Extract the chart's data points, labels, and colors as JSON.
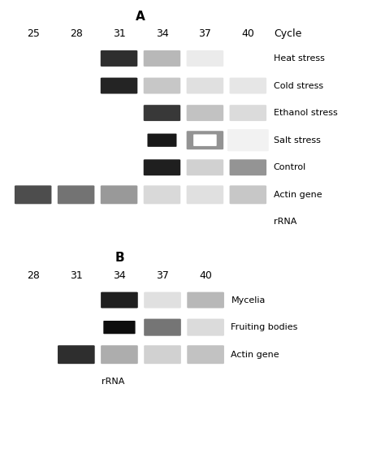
{
  "fig_bg": "#ffffff",
  "panel_A": {
    "title": "A",
    "cycles": [
      "25",
      "28",
      "31",
      "34",
      "37",
      "40"
    ],
    "cycle_label": "Cycle",
    "rows": [
      {
        "label": "Heat stress",
        "bands": [
          0.0,
          0.0,
          0.18,
          0.72,
          0.92,
          1.0
        ],
        "type": "normal"
      },
      {
        "label": "Cold stress",
        "bands": [
          0.0,
          0.0,
          0.14,
          0.78,
          0.88,
          0.9
        ],
        "type": "normal"
      },
      {
        "label": "Ethanol stress",
        "bands": [
          0.0,
          0.0,
          0.0,
          0.22,
          0.76,
          0.86
        ],
        "type": "normal"
      },
      {
        "label": "Salt stress",
        "bands": [
          0.0,
          0.0,
          0.0,
          0.18,
          0.72,
          0.95
        ],
        "type": "salt"
      },
      {
        "label": "Control",
        "bands": [
          0.0,
          0.0,
          0.0,
          0.12,
          0.82,
          0.58
        ],
        "type": "normal"
      },
      {
        "label": "Actin gene",
        "bands": [
          0.3,
          0.45,
          0.6,
          0.85,
          0.88,
          0.78
        ],
        "type": "actin"
      },
      {
        "label": "rRNA",
        "bands": [
          1.0,
          1.0,
          1.0,
          1.0,
          1.0,
          1.0
        ],
        "type": "rrna"
      }
    ]
  },
  "panel_B": {
    "title": "B",
    "cycles": [
      "28",
      "31",
      "34",
      "37",
      "40"
    ],
    "rows": [
      {
        "label": "Mycelia",
        "bands": [
          0.0,
          0.0,
          0.12,
          0.88,
          0.72
        ],
        "type": "normal"
      },
      {
        "label": "Fruiting bodies",
        "bands": [
          0.0,
          0.0,
          0.1,
          0.46,
          0.86
        ],
        "type": "fruiting"
      },
      {
        "label": "Actin gene",
        "bands": [
          0.0,
          0.18,
          0.68,
          0.82,
          0.76
        ],
        "type": "actin"
      },
      {
        "label": "rRNA",
        "bands": [
          1.0,
          1.0,
          0.0,
          0.0,
          0.0
        ],
        "type": "rrna_b"
      }
    ]
  },
  "label_fs": 8.0,
  "title_fs": 11,
  "cycle_fs": 9.0
}
